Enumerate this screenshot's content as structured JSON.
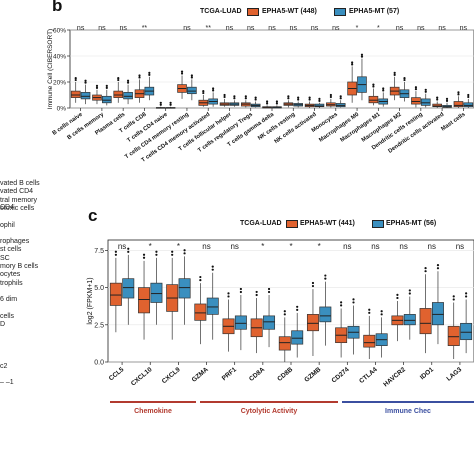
{
  "left_column": {
    "items": [
      "vated B cells",
      "vated CD4",
      "tral memory CD4",
      "otoxic cells",
      "",
      "ophil",
      "",
      "rophages",
      "st cells",
      "SC",
      "mory B cells",
      "ocytes",
      "trophils",
      "",
      "6 dim",
      "",
      "cells",
      "D",
      "",
      "",
      "",
      "",
      "c2",
      "",
      "– –1"
    ]
  },
  "colors": {
    "wt": "#e0622f",
    "mt": "#3a8fbf",
    "box_line": "#333333",
    "sig_line": "#b23a2f",
    "sig_line_blue": "#3b4fa0"
  },
  "chart_data": [
    {
      "panel": "b",
      "type": "box",
      "legend_title": "TCGA-LUAD",
      "series": [
        {
          "name": "EPHA5-WT (448)",
          "color": "#e0622f"
        },
        {
          "name": "EPHA5-MT (57)",
          "color": "#3a8fbf"
        }
      ],
      "ylabel": "Immune Cell (CIBERSORT)",
      "ylim": [
        0,
        60
      ],
      "yticks": [
        "0%",
        "20%",
        "40%",
        "60%"
      ],
      "grid": true,
      "categories": [
        "B cells naive",
        "B cells memory",
        "Plasma cells",
        "T cells CD8",
        "T cells CD4 naive",
        "T cells CD4 memory resting",
        "T cells CD4 memory activated",
        "T cells follicular helper",
        "T cells regulatory Tregs",
        "T cells gamma delta",
        "NK cells resting",
        "NK cells activated",
        "Monocytes",
        "Macrophages M0",
        "Macrophages M1",
        "Macrophages M2",
        "Dendritic cells resting",
        "Dendritic cells activated",
        "Mast cells"
      ],
      "significance": [
        "ns",
        "ns",
        "ns",
        "**",
        "",
        "ns",
        "**",
        "ns",
        "ns",
        "ns",
        "ns",
        "ns",
        "ns",
        "*",
        "*",
        "ns",
        "ns",
        "ns",
        "ns"
      ],
      "boxes_wt": [
        [
          4,
          8,
          10,
          13,
          20
        ],
        [
          3,
          6,
          8,
          10,
          14
        ],
        [
          4,
          8,
          10,
          13,
          20
        ],
        [
          4,
          8,
          11,
          14,
          22
        ],
        [
          0,
          0,
          0,
          0.4,
          1
        ],
        [
          7,
          12,
          15,
          18,
          25
        ],
        [
          1,
          2,
          4,
          6,
          10
        ],
        [
          1,
          2,
          3,
          4,
          7
        ],
        [
          0.5,
          1.5,
          3,
          4,
          6
        ],
        [
          0,
          0,
          0.3,
          1,
          2
        ],
        [
          0.5,
          2,
          3,
          4,
          6
        ],
        [
          0,
          1,
          2,
          3,
          5
        ],
        [
          0.5,
          1.5,
          2.5,
          4,
          7
        ],
        [
          4,
          10,
          15,
          20,
          32
        ],
        [
          2,
          4,
          6,
          9,
          15
        ],
        [
          6,
          10,
          13,
          16,
          24
        ],
        [
          0.5,
          3,
          5,
          8,
          13
        ],
        [
          0,
          1,
          1.5,
          3,
          5
        ],
        [
          0,
          1,
          2,
          5,
          9
        ]
      ],
      "boxes_mt": [
        [
          3,
          7,
          9,
          12,
          18
        ],
        [
          2,
          4,
          6,
          9,
          14
        ],
        [
          3,
          7,
          9,
          12,
          18
        ],
        [
          6,
          10,
          13,
          16,
          24
        ],
        [
          0,
          0,
          0,
          0.4,
          1
        ],
        [
          6,
          11,
          13,
          16,
          22
        ],
        [
          1,
          3,
          5,
          7,
          12
        ],
        [
          1,
          2,
          3,
          4,
          6
        ],
        [
          0.5,
          1,
          2,
          3,
          5
        ],
        [
          0,
          0,
          0.3,
          1,
          2
        ],
        [
          0.5,
          1.5,
          2.5,
          3.5,
          5
        ],
        [
          0,
          1,
          1.5,
          3,
          4
        ],
        [
          0.5,
          1,
          2,
          3.5,
          6
        ],
        [
          6,
          12,
          18,
          24,
          38
        ],
        [
          1,
          3,
          5,
          7,
          12
        ],
        [
          5,
          8,
          11,
          14,
          20
        ],
        [
          0.5,
          2,
          4,
          7,
          11
        ],
        [
          0,
          0.5,
          1,
          2,
          4
        ],
        [
          0,
          1,
          2,
          4,
          7
        ]
      ]
    },
    {
      "panel": "c",
      "type": "box",
      "legend_title": "TCGA-LUAD",
      "series": [
        {
          "name": "EPHA5-WT (441)",
          "color": "#e0622f"
        },
        {
          "name": "EPHA5-MT (56)",
          "color": "#3a8fbf"
        }
      ],
      "ylabel": "log2 (FPKM+1)",
      "ylim": [
        0,
        8.2
      ],
      "yticks": [
        "0.0",
        "2.5",
        "5.0",
        "7.5"
      ],
      "grid": true,
      "categories": [
        "CCL5",
        "CXCL10",
        "CXCL9",
        "GZMA",
        "PRF1",
        "CD8A",
        "CD8B",
        "GZMB",
        "CD274",
        "CTLA4",
        "HAVCR2",
        "IDO1",
        "LAG3"
      ],
      "significance": [
        "ns",
        "*",
        "*",
        "ns",
        "ns",
        "*",
        "*",
        "*",
        "ns",
        "ns",
        "ns",
        "ns",
        "ns"
      ],
      "boxes_wt": [
        [
          2,
          3.8,
          4.5,
          5.3,
          7
        ],
        [
          1.5,
          3.3,
          4.2,
          5,
          6.8
        ],
        [
          1.5,
          3.4,
          4.3,
          5.2,
          7
        ],
        [
          1.2,
          2.8,
          3.3,
          3.9,
          5.3
        ],
        [
          0.7,
          1.9,
          2.4,
          2.9,
          4.2
        ],
        [
          0.6,
          1.7,
          2.3,
          2.9,
          4.3
        ],
        [
          0,
          0.8,
          1.3,
          1.7,
          3
        ],
        [
          0.4,
          2.1,
          2.6,
          3.2,
          4.9
        ],
        [
          0.3,
          1.3,
          1.8,
          2.3,
          3.6
        ],
        [
          0.2,
          1,
          1.3,
          1.8,
          3.1
        ],
        [
          1.4,
          2.5,
          2.8,
          3.1,
          4.1
        ],
        [
          0.6,
          1.9,
          2.6,
          3.6,
          5.9
        ],
        [
          0.2,
          1.1,
          1.7,
          2.4,
          4
        ]
      ],
      "boxes_mt": [
        [
          2.5,
          4.3,
          5,
          5.6,
          7.2
        ],
        [
          2.5,
          4,
          4.6,
          5.3,
          7
        ],
        [
          2.5,
          4.3,
          5,
          5.6,
          7.1
        ],
        [
          1.5,
          3.2,
          3.7,
          4.3,
          6
        ],
        [
          0.8,
          2.2,
          2.6,
          3.1,
          4.5
        ],
        [
          1,
          2.2,
          2.7,
          3.1,
          4.5
        ],
        [
          0.3,
          1.2,
          1.6,
          2.1,
          3.3
        ],
        [
          1.1,
          2.7,
          3.1,
          3.7,
          5.4
        ],
        [
          0.5,
          1.6,
          2,
          2.4,
          3.8
        ],
        [
          0.3,
          1.1,
          1.5,
          1.9,
          3
        ],
        [
          1.5,
          2.5,
          2.8,
          3.2,
          4.4
        ],
        [
          1.2,
          2.5,
          3.2,
          4,
          6.1
        ],
        [
          0.6,
          1.5,
          2,
          2.6,
          4.2
        ]
      ]
    }
  ],
  "panel_b": {
    "letter": "b",
    "legend_title": "TCGA-LUAD",
    "legend_wt": "EPHA5-WT (448)",
    "legend_mt": "EPHA5-MT (57)"
  },
  "panel_c": {
    "letter": "c",
    "legend_title": "TCGA-LUAD",
    "legend_wt": "EPHA5-WT (441)",
    "legend_mt": "EPHA5-MT (56)",
    "groups": [
      {
        "label": "Chemokine",
        "color": "#b23a2f"
      },
      {
        "label": "Cytolytic Activity",
        "color": "#b23a2f"
      },
      {
        "label": "Immune Chec",
        "color": "#3b4fa0"
      }
    ]
  }
}
